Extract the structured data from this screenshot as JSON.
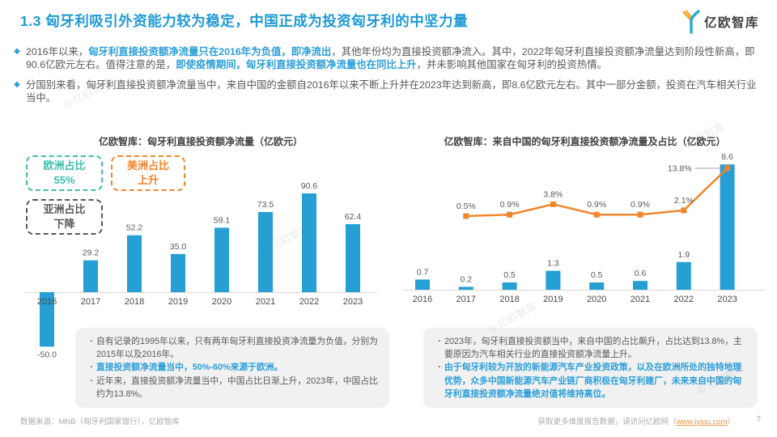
{
  "header": {
    "title": "1.3 匈牙利吸引外资能力较为稳定，中国正成为投资匈牙利的中坚力量",
    "logo_text": "亿欧智库"
  },
  "ui": {
    "bullet_marker": "◆",
    "note_marker": "·"
  },
  "bullets": [
    {
      "segments": [
        {
          "text": "2016年以来，",
          "highlight": false
        },
        {
          "text": "匈牙利直接投资额净流量只在2016年为负值，即净流出",
          "highlight": true
        },
        {
          "text": "，其他年份均为直接投资额净流入。其中，2022年匈牙利直接投资额净流量达到阶段性新高，即90.6亿欧元左右。值得注意的是，",
          "highlight": false
        },
        {
          "text": "即使疫情期间，匈牙利直接投资额净流量也在同比上升",
          "highlight": true
        },
        {
          "text": "，并未影响其他国家在匈牙利的投资热情。",
          "highlight": false
        }
      ]
    },
    {
      "segments": [
        {
          "text": "分国别来看，匈牙利直接投资额净流量当中，来自中国的金额自2016年以来不断上升并在2023年达到新高，即8.6亿欧元左右。其中一部分金额，投资在汽车相关行业当中。",
          "highlight": false
        }
      ]
    }
  ],
  "chart_data": [
    {
      "type": "bar",
      "title": "亿欧智库：匈牙利直接投资额净流量（亿欧元）",
      "categories": [
        "2016",
        "2017",
        "2018",
        "2019",
        "2020",
        "2021",
        "2022",
        "2023"
      ],
      "values": [
        -50.0,
        29.2,
        52.2,
        35.0,
        59.1,
        73.5,
        90.6,
        62.4
      ],
      "ylim": [
        -50,
        95
      ],
      "bar_color": "#259fd4",
      "grid": false,
      "annotations": [
        {
          "line1": "欧洲占比",
          "line2": "55%",
          "color": "#3dbdad"
        },
        {
          "line1": "美洲占比",
          "line2": "上升",
          "color": "#f0862c"
        },
        {
          "line1": "亚洲占比",
          "line2": "下降",
          "color": "#595959"
        }
      ]
    },
    {
      "type": "combo",
      "title": "亿欧智库：来自中国的匈牙利直接投资额净流量及占比（亿欧元）",
      "categories": [
        "2016",
        "2017",
        "2018",
        "2019",
        "2020",
        "2021",
        "2022",
        "2023"
      ],
      "series": [
        {
          "name": "净流量",
          "type": "bar",
          "color": "#259fd4",
          "values": [
            0.7,
            0.2,
            0.5,
            1.3,
            0.5,
            0.6,
            1.9,
            8.6
          ]
        },
        {
          "name": "占比",
          "type": "line",
          "color": "#f0862c",
          "unit": "%",
          "values": [
            null,
            0.5,
            0.9,
            3.8,
            0.9,
            0.9,
            2.1,
            13.8
          ]
        }
      ],
      "bar_ylim": [
        0,
        9
      ],
      "line_ylim": [
        0,
        15
      ],
      "grid": false
    }
  ],
  "notes_left": {
    "items": [
      {
        "text": "自有记录的1995年以来，只有两年匈牙利直接投资净流量为负值，分别为2015年以及2016年。",
        "highlight": false
      },
      {
        "text": "直接投资额净流量当中，50%-60%来源于欧洲。",
        "highlight": true
      },
      {
        "text": "近年来，直接投资额净流量当中，中国占比日渐上升，2023年，中国占比约为13.8%。",
        "highlight": false
      }
    ]
  },
  "notes_right": {
    "items": [
      {
        "text": "2023年，匈牙利直接投资额当中，来自中国的占比飙升，占比达到13.8%，主要原因为汽车相关行业的直接投资额净流量上升。",
        "highlight": false
      },
      {
        "text": "由于匈牙利较为开放的新能源汽车产业投资政策，以及在欧洲所处的独特地理优势，众多中国新能源汽车产业链厂商积极在匈牙利建厂，未来来自中国的匈牙利直接投资额净流量绝对值将维持高位。",
        "highlight": true
      }
    ]
  },
  "footer": {
    "source": "数据来源：MNB（匈牙利国家银行），亿欧智库",
    "cta_prefix": "获取更多维度报告数据，请访问亿欧网（",
    "link": "www.iyiou.com",
    "cta_suffix": "）",
    "page_number": "7"
  },
  "watermark": "© 亿欧智库",
  "colors": {
    "accent_blue": "#1e9ad6",
    "bar_blue": "#259fd4",
    "orange": "#f0862c",
    "teal": "#3dbdad",
    "text_gray": "#595959",
    "axis_gray": "#d9d9d9",
    "note_bg": "#f1f1f2",
    "link_orange": "#f0923c"
  }
}
